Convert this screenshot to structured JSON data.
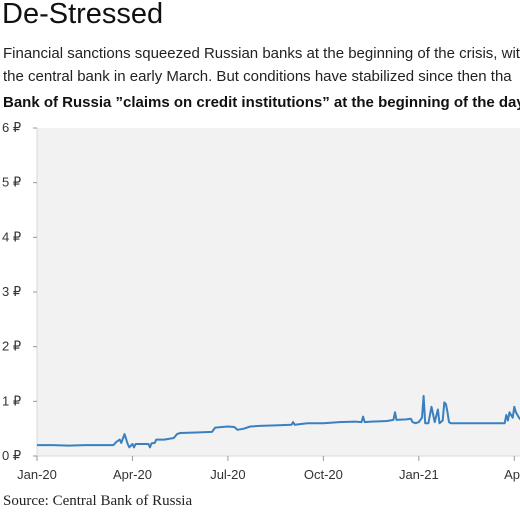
{
  "header": {
    "title": "De-Stressed",
    "subtitle_lines": [
      "Financial sanctions squeezed Russian banks at the beginning of the crisis, wit",
      "the central bank in early March. But conditions have stabilized since then tha"
    ]
  },
  "chart_data": {
    "type": "line",
    "title": "Bank of Russia ”claims on credit institutions” at the beginning of the day",
    "xlabel": "",
    "ylabel": "",
    "source": "Source: Central Bank of Russia",
    "y_ticks": [
      "0 ₽",
      "1 ₽",
      "2 ₽",
      "3 ₽",
      "4 ₽",
      "5 ₽",
      "6 ₽"
    ],
    "x_ticks": [
      "Jan-20",
      "Apr-20",
      "Jul-20",
      "Oct-20",
      "Jan-21",
      "Apr"
    ],
    "ylim": [
      0,
      6
    ],
    "xlim_months": [
      0,
      15.4
    ],
    "grid": false,
    "line_color": "#3a80c0",
    "frame_color": "#d9d9d9",
    "series": [
      {
        "points": [
          [
            0.0,
            0.2
          ],
          [
            0.5,
            0.2
          ],
          [
            1.0,
            0.19
          ],
          [
            1.5,
            0.2
          ],
          [
            2.0,
            0.2
          ],
          [
            2.4,
            0.2
          ],
          [
            2.5,
            0.26
          ],
          [
            2.6,
            0.3
          ],
          [
            2.65,
            0.24
          ],
          [
            2.75,
            0.4
          ],
          [
            2.85,
            0.22
          ],
          [
            2.9,
            0.16
          ],
          [
            3.0,
            0.22
          ],
          [
            3.05,
            0.16
          ],
          [
            3.1,
            0.22
          ],
          [
            3.5,
            0.22
          ],
          [
            3.55,
            0.16
          ],
          [
            3.6,
            0.23
          ],
          [
            3.7,
            0.24
          ],
          [
            3.75,
            0.3
          ],
          [
            4.0,
            0.3
          ],
          [
            4.3,
            0.33
          ],
          [
            4.4,
            0.4
          ],
          [
            4.5,
            0.42
          ],
          [
            5.0,
            0.43
          ],
          [
            5.5,
            0.44
          ],
          [
            5.6,
            0.52
          ],
          [
            6.0,
            0.54
          ],
          [
            6.2,
            0.53
          ],
          [
            6.3,
            0.48
          ],
          [
            6.5,
            0.5
          ],
          [
            6.7,
            0.54
          ],
          [
            7.0,
            0.55
          ],
          [
            7.5,
            0.56
          ],
          [
            8.0,
            0.57
          ],
          [
            8.05,
            0.62
          ],
          [
            8.1,
            0.57
          ],
          [
            8.5,
            0.6
          ],
          [
            9.0,
            0.6
          ],
          [
            9.5,
            0.62
          ],
          [
            10.0,
            0.63
          ],
          [
            10.2,
            0.62
          ],
          [
            10.25,
            0.72
          ],
          [
            10.3,
            0.62
          ],
          [
            10.5,
            0.63
          ],
          [
            11.0,
            0.64
          ],
          [
            11.2,
            0.66
          ],
          [
            11.25,
            0.8
          ],
          [
            11.3,
            0.66
          ],
          [
            11.6,
            0.67
          ],
          [
            11.75,
            0.68
          ],
          [
            11.8,
            0.62
          ],
          [
            11.9,
            0.6
          ],
          [
            12.0,
            0.62
          ],
          [
            12.1,
            0.7
          ],
          [
            12.15,
            1.1
          ],
          [
            12.2,
            0.6
          ],
          [
            12.3,
            0.6
          ],
          [
            12.4,
            0.9
          ],
          [
            12.5,
            0.62
          ],
          [
            12.6,
            0.85
          ],
          [
            12.65,
            0.6
          ],
          [
            12.75,
            0.65
          ],
          [
            12.8,
            0.98
          ],
          [
            12.85,
            0.95
          ],
          [
            12.9,
            0.8
          ],
          [
            12.95,
            0.62
          ],
          [
            13.0,
            0.6
          ],
          [
            13.5,
            0.6
          ],
          [
            14.0,
            0.6
          ],
          [
            14.5,
            0.6
          ],
          [
            14.7,
            0.6
          ],
          [
            14.75,
            0.75
          ],
          [
            14.8,
            0.65
          ],
          [
            14.85,
            0.8
          ],
          [
            14.95,
            0.7
          ],
          [
            15.0,
            0.9
          ],
          [
            15.05,
            0.8
          ],
          [
            15.15,
            0.7
          ],
          [
            15.3,
            0.6
          ],
          [
            15.4,
            0.6
          ]
        ]
      }
    ]
  }
}
